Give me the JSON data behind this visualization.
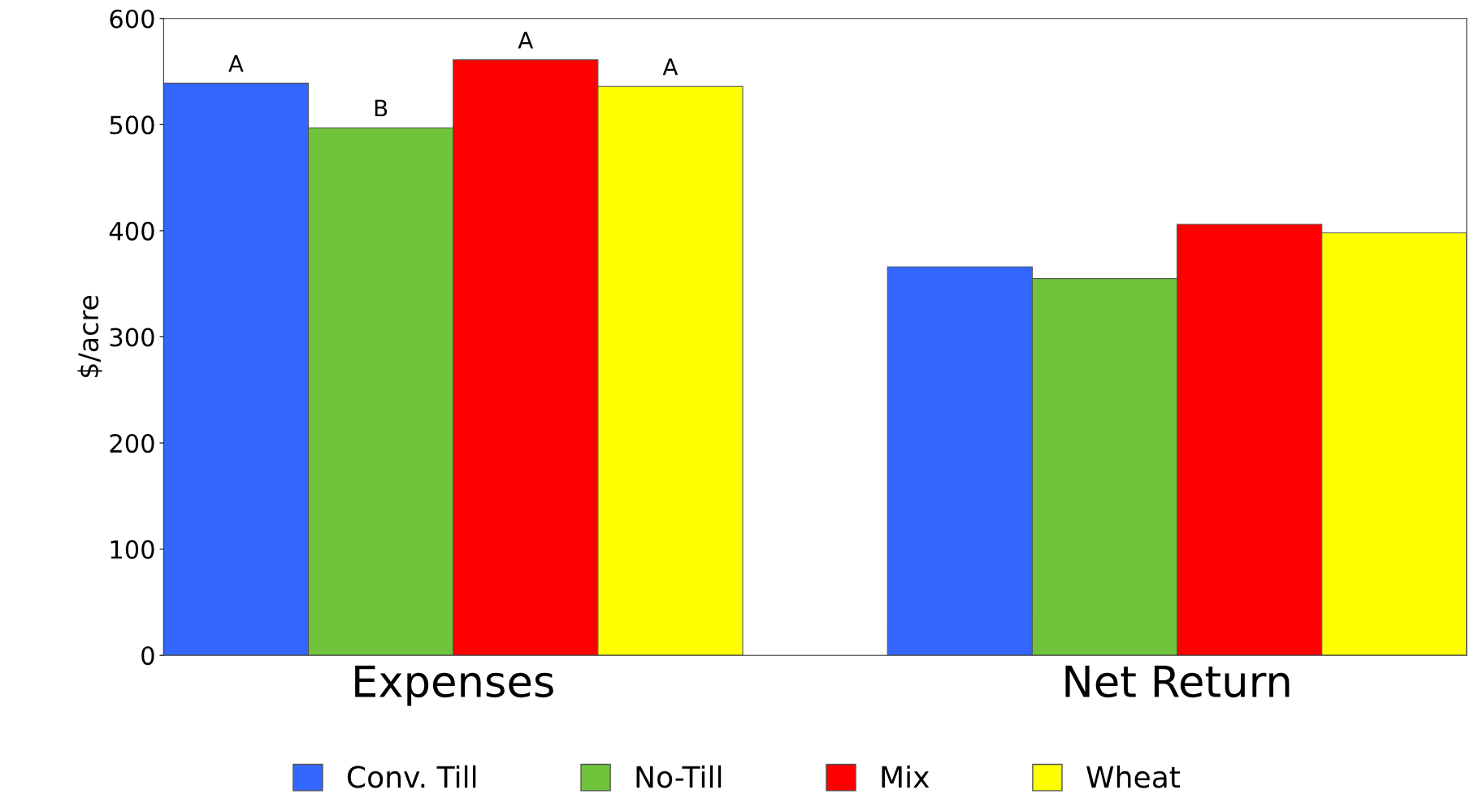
{
  "chart_data": {
    "type": "bar",
    "ylabel": "$/acre",
    "categories": [
      "Expenses",
      "Net Return"
    ],
    "series": [
      {
        "name": "Conv. Till",
        "color": "#3366ff",
        "values": [
          539,
          366
        ],
        "value_labels": [
          "A",
          null
        ]
      },
      {
        "name": "No-Till",
        "color": "#70c43c",
        "values": [
          497,
          355
        ],
        "value_labels": [
          "B",
          null
        ]
      },
      {
        "name": "Mix",
        "color": "#ff0000",
        "values": [
          561,
          406
        ],
        "value_labels": [
          "A",
          null
        ]
      },
      {
        "name": "Wheat",
        "color": "#ffff00",
        "values": [
          536,
          398
        ],
        "value_labels": [
          "A",
          null
        ]
      }
    ],
    "ylim": [
      0,
      600
    ],
    "yticks": [
      0,
      100,
      200,
      300,
      400,
      500,
      600
    ],
    "grid": false,
    "legend": "bottom"
  }
}
